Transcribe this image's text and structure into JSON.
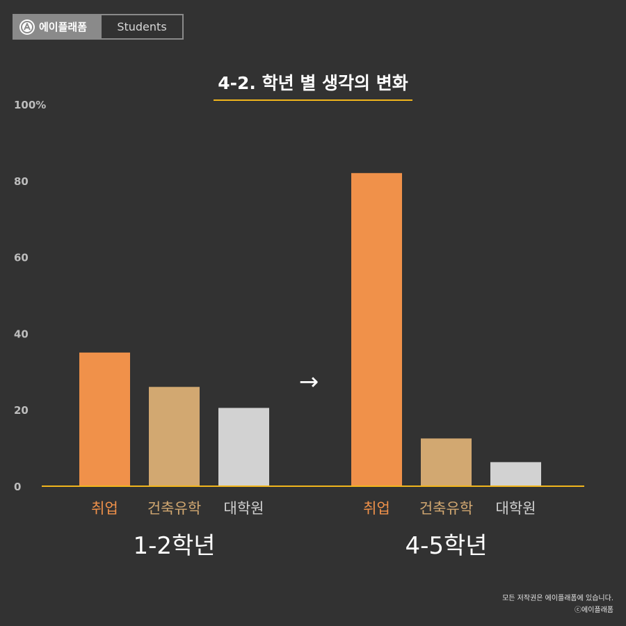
{
  "brand": {
    "name": "에이플래폼",
    "tag": "Students"
  },
  "colors": {
    "background": "#323232",
    "accent": "#f2b61c",
    "jobs": "#f0914a",
    "study": "#d2a871",
    "grad": "#d2d2d2"
  },
  "arrow": "→",
  "footer": {
    "copyright": "모든 저작권은 에이플래폼에 있습니다.",
    "mark": "ⓒ에이플래폼"
  },
  "chart_data": {
    "type": "bar",
    "title": "4-2. 학년 별 생각의 변화",
    "ylim": [
      0,
      100
    ],
    "yticks": [
      {
        "value": 0,
        "label": "0"
      },
      {
        "value": 20,
        "label": "20"
      },
      {
        "value": 40,
        "label": "40"
      },
      {
        "value": 60,
        "label": "60"
      },
      {
        "value": 80,
        "label": "80"
      },
      {
        "value": 100,
        "label": "100%"
      }
    ],
    "groups": [
      {
        "label": "1-2학년",
        "bars": [
          {
            "category": "취업",
            "value": 35,
            "color": "#f0914a",
            "label_color": "#f0914a"
          },
          {
            "category": "건축유학",
            "value": 26,
            "color": "#d2a871",
            "label_color": "#d2a871"
          },
          {
            "category": "대학원",
            "value": 20.5,
            "color": "#d2d2d2",
            "label_color": "#d2d2d2"
          }
        ]
      },
      {
        "label": "4-5학년",
        "bars": [
          {
            "category": "취업",
            "value": 82,
            "color": "#f0914a",
            "label_color": "#f0914a"
          },
          {
            "category": "건축유학",
            "value": 12.5,
            "color": "#d2a871",
            "label_color": "#d2a871"
          },
          {
            "category": "대학원",
            "value": 6.3,
            "color": "#d2d2d2",
            "label_color": "#d2d2d2"
          }
        ]
      }
    ]
  }
}
